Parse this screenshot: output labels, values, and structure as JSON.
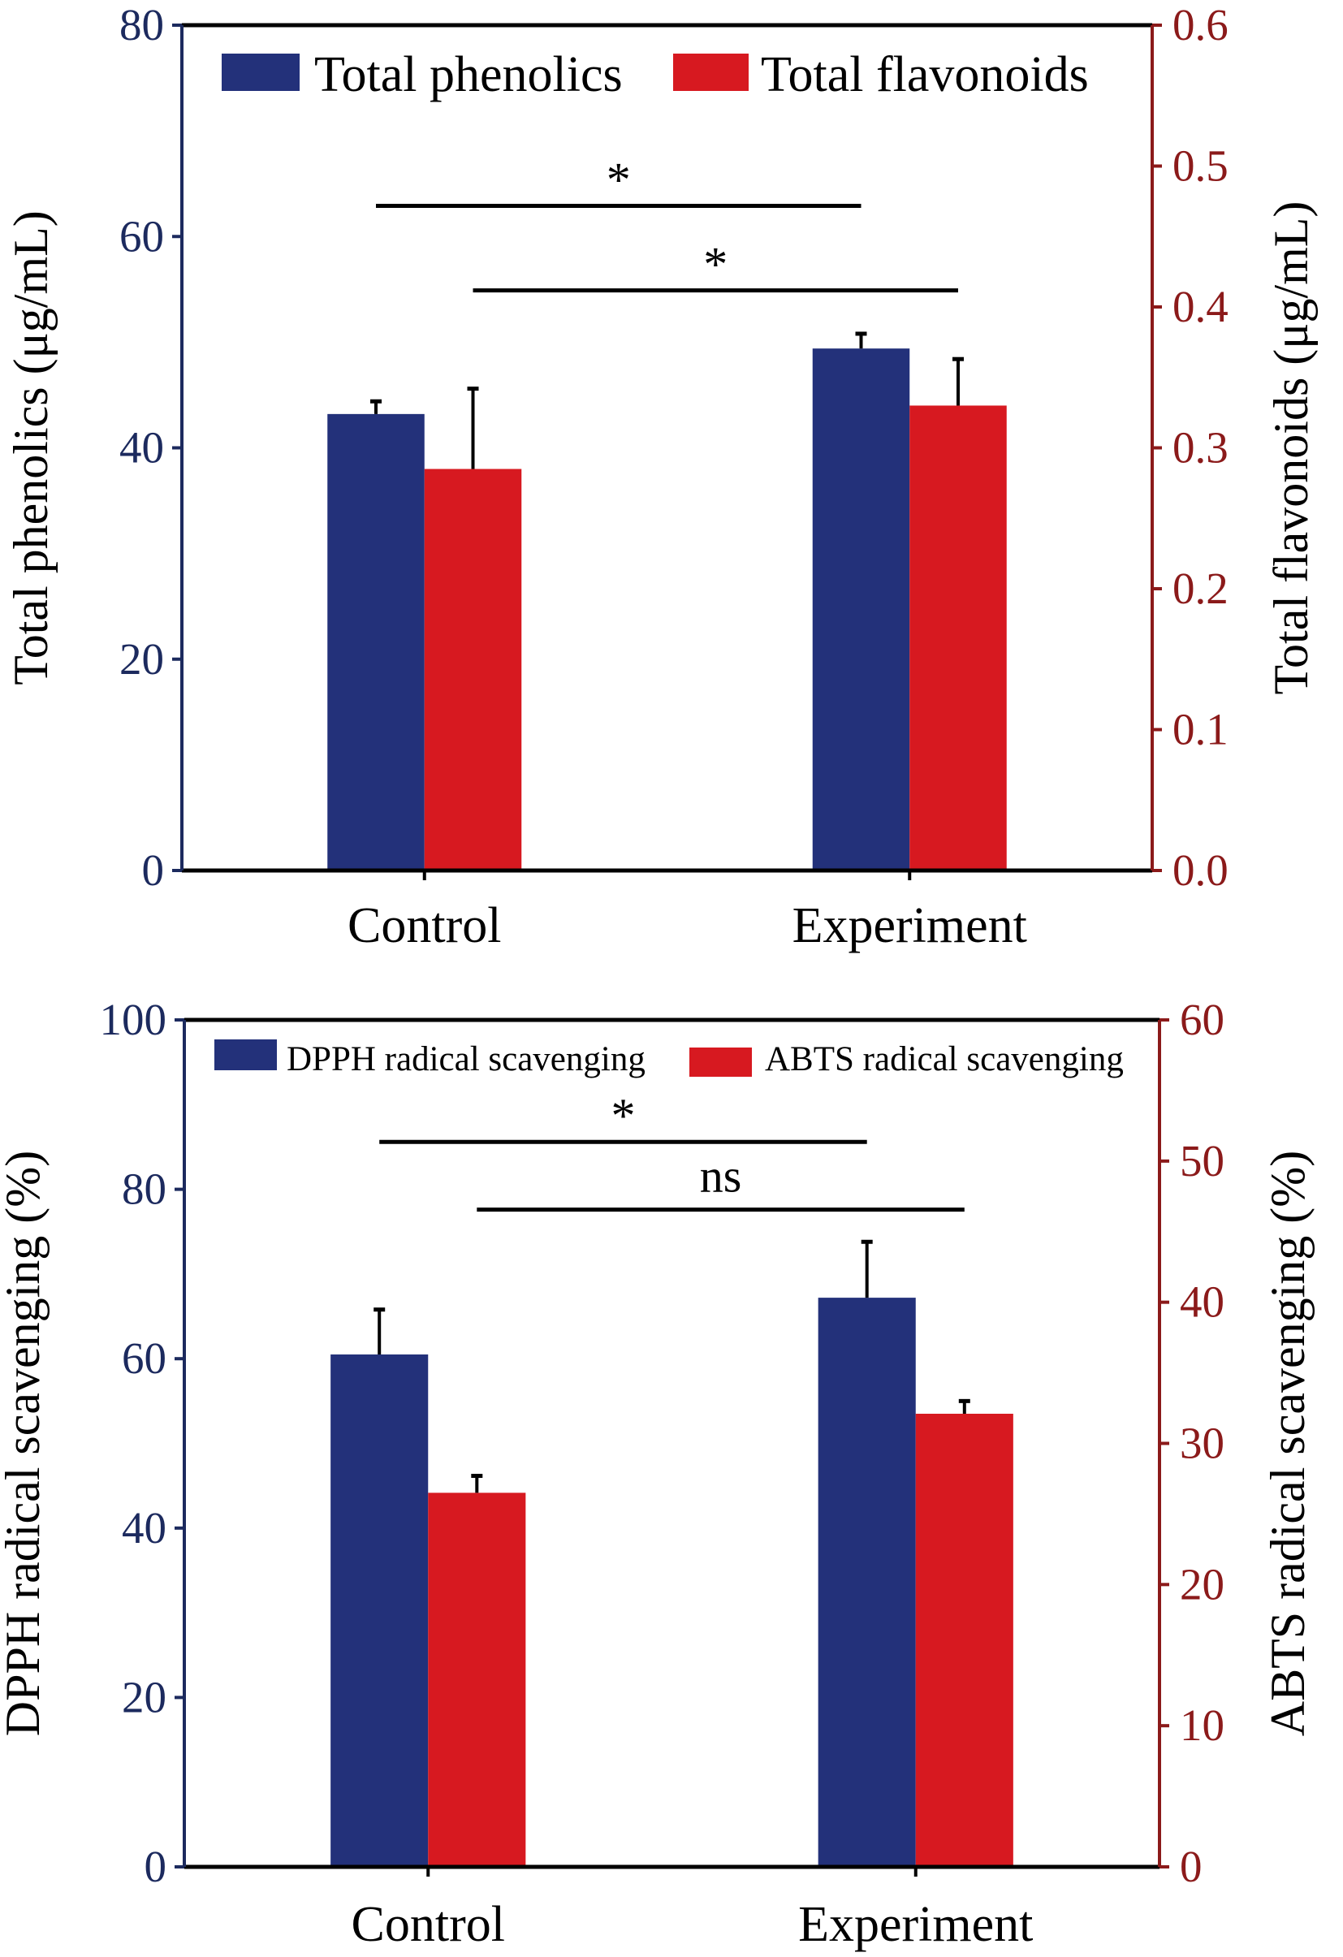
{
  "colors": {
    "series1": "#23317a",
    "series2": "#d71920",
    "left_axis": "#1c2a5e",
    "right_axis": "#8b1a1a",
    "frame": "#000000"
  },
  "chart_data": [
    {
      "type": "bar",
      "categories": [
        "Control",
        "Experiment"
      ],
      "ylabel": "Total phenolics (μg/mL)",
      "ylabel_right": "Total flavonoids (μg/mL)",
      "ylim": [
        0,
        80
      ],
      "yticks": [
        "0",
        "20",
        "40",
        "60",
        "80"
      ],
      "ylim_right": [
        0,
        0.6
      ],
      "yticks_right": [
        "0.0",
        "0.1",
        "0.2",
        "0.3",
        "0.4",
        "0.5",
        "0.6"
      ],
      "legend_position": "top",
      "grid": false,
      "series": [
        {
          "name": "Total phenolics",
          "axis": "left",
          "values": [
            43.2,
            49.4
          ],
          "errors": [
            1.2,
            1.4
          ]
        },
        {
          "name": "Total flavonoids",
          "axis": "right",
          "values": [
            0.285,
            0.33
          ],
          "errors": [
            0.057,
            0.033
          ]
        }
      ],
      "significance": [
        {
          "label": "*",
          "from": "Control Total phenolics",
          "to": "Experiment Total phenolics",
          "y": 62.9
        },
        {
          "label": "*",
          "from": "Control Total flavonoids",
          "to": "Experiment Total flavonoids",
          "y": 54.9
        }
      ]
    },
    {
      "type": "bar",
      "categories": [
        "Control",
        "Experiment"
      ],
      "ylabel": "DPPH radical scavenging (%)",
      "ylabel_right": "ABTS radical scavenging (%)",
      "ylim": [
        0,
        100
      ],
      "yticks": [
        "0",
        "20",
        "40",
        "60",
        "80",
        "100"
      ],
      "ylim_right": [
        0,
        60
      ],
      "yticks_right": [
        "0",
        "10",
        "20",
        "30",
        "40",
        "50",
        "60"
      ],
      "legend_position": "top",
      "grid": false,
      "series": [
        {
          "name": "DPPH radical scavenging",
          "axis": "left",
          "values": [
            60.5,
            67.2
          ],
          "errors": [
            5.3,
            6.6
          ]
        },
        {
          "name": "ABTS radical scavenging",
          "axis": "right",
          "values": [
            26.5,
            32.1
          ],
          "errors": [
            1.2,
            0.9
          ]
        }
      ],
      "significance": [
        {
          "label": "*",
          "from": "Control DPPH radical scavenging",
          "to": "Experiment DPPH radical scavenging",
          "y": 85.6
        },
        {
          "label": "ns",
          "from": "Control ABTS radical scavenging",
          "to": "Experiment ABTS radical scavenging",
          "y": 77.6
        }
      ]
    }
  ]
}
